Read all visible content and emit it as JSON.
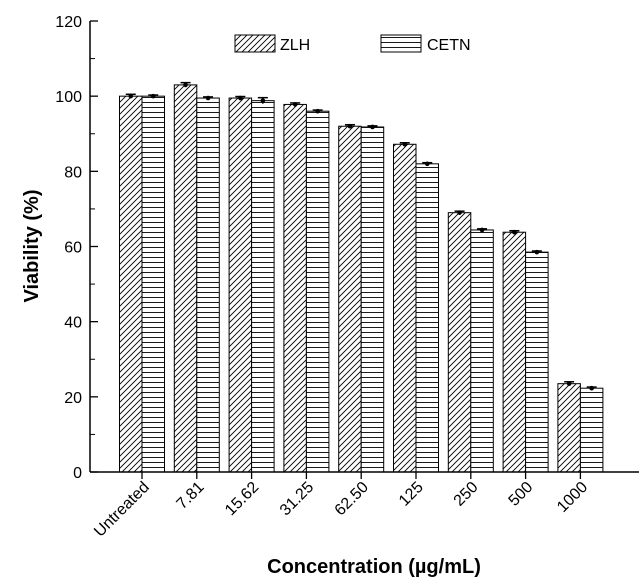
{
  "chart_data": {
    "type": "bar",
    "xlabel": "Concentration (µg/mL)",
    "ylabel": "Viability (%)",
    "ylim": [
      0,
      120
    ],
    "yticks": [
      0,
      20,
      40,
      60,
      80,
      100,
      120
    ],
    "legend_position": "top-center",
    "grid": false,
    "categories": [
      "Untreated",
      "7.81",
      "15.62",
      "31.25",
      "62.50",
      "125",
      "250",
      "500",
      "1000"
    ],
    "series": [
      {
        "name": "ZLH",
        "pattern": "diagonal-hatch",
        "values": [
          100.0,
          103.0,
          99.5,
          97.8,
          92.0,
          87.2,
          69.0,
          63.8,
          23.5
        ],
        "errors": [
          0.5,
          0.6,
          0.4,
          0.4,
          0.4,
          0.4,
          0.4,
          0.4,
          0.5
        ]
      },
      {
        "name": "CETN",
        "pattern": "horizontal-hatch",
        "values": [
          100.0,
          99.5,
          98.8,
          96.0,
          91.8,
          82.0,
          64.4,
          58.5,
          22.3
        ],
        "errors": [
          0.3,
          0.3,
          0.8,
          0.3,
          0.3,
          0.3,
          0.3,
          0.3,
          0.3
        ]
      }
    ]
  },
  "colors": {
    "bar_fill": "#ffffff",
    "hatch": "#000000",
    "axis": "#000000"
  }
}
